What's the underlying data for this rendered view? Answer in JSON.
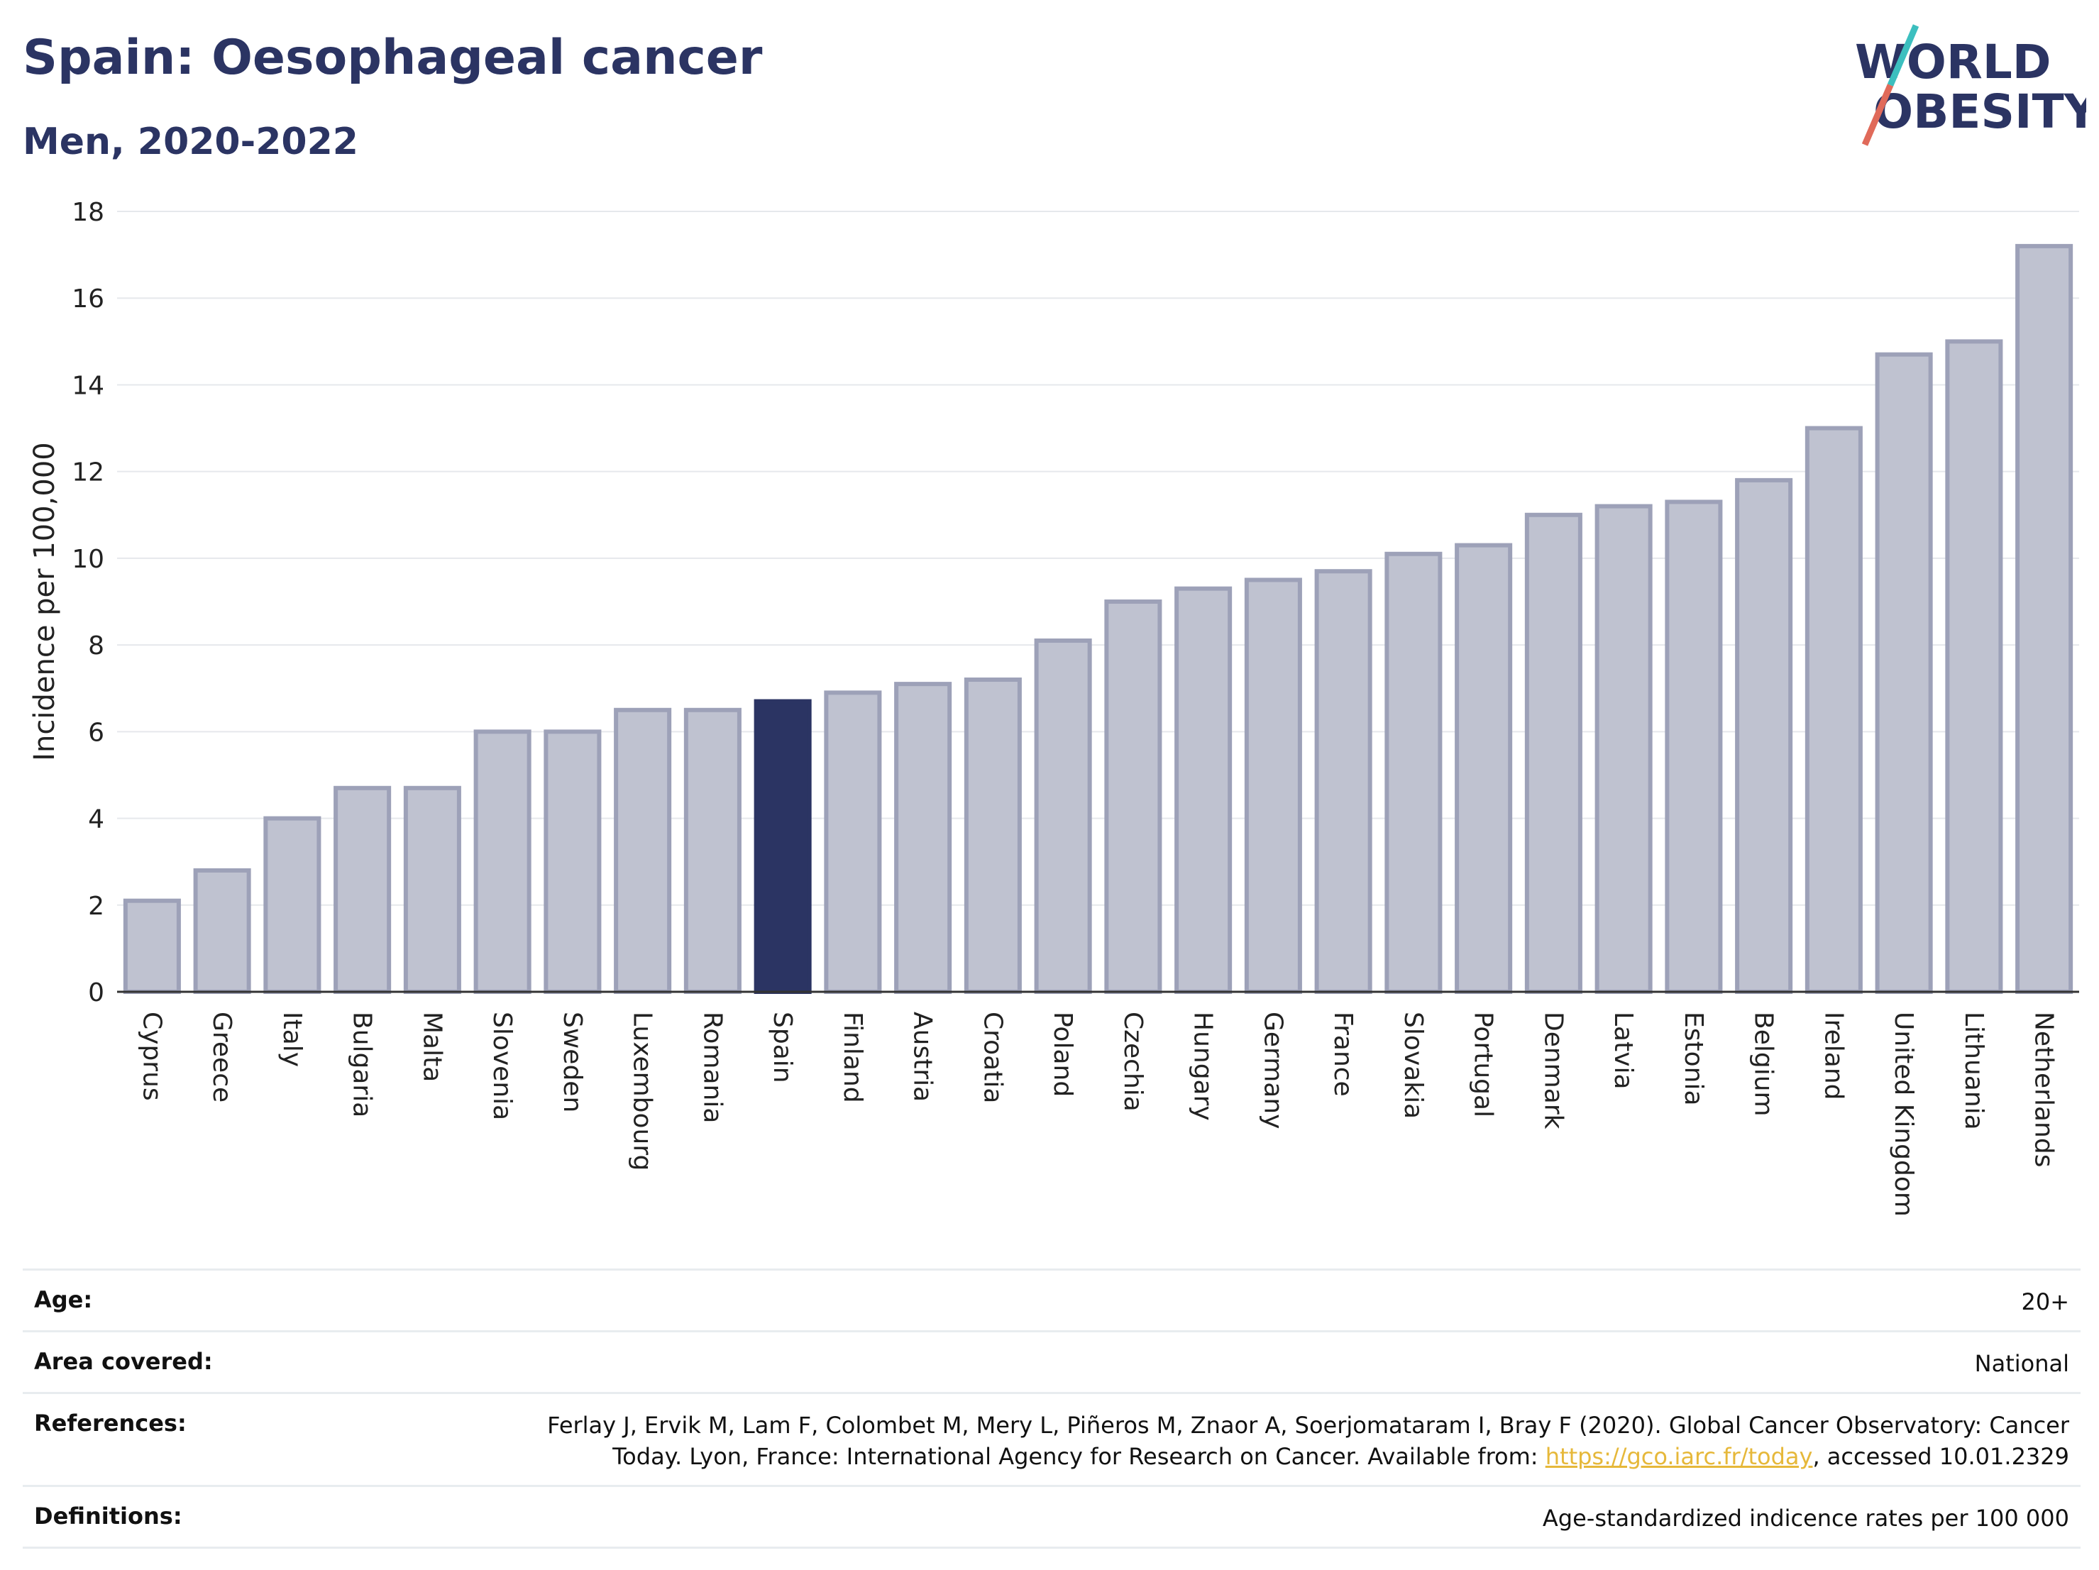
{
  "header": {
    "title": "Spain: Oesophageal cancer",
    "subtitle": "Men, 2020-2022"
  },
  "logo": {
    "line1": "WORLD",
    "line2": "OBESITY",
    "accent_colors": [
      "#3cbfbf",
      "#e06a5a"
    ]
  },
  "chart_data": {
    "type": "bar",
    "ylabel": "Incidence per 100,000",
    "ylim": [
      0,
      18
    ],
    "yticks": [
      0,
      2,
      4,
      6,
      8,
      10,
      12,
      14,
      16,
      18
    ],
    "grid": true,
    "highlight": "Spain",
    "colors": {
      "bar": "#bfc2d0",
      "bar_border": "#9da1b8",
      "highlight": "#2b3463"
    },
    "categories": [
      "Cyprus",
      "Greece",
      "Italy",
      "Bulgaria",
      "Malta",
      "Slovenia",
      "Sweden",
      "Luxembourg",
      "Romania",
      "Spain",
      "Finland",
      "Austria",
      "Croatia",
      "Poland",
      "Czechia",
      "Hungary",
      "Germany",
      "France",
      "Slovakia",
      "Portugal",
      "Denmark",
      "Latvia",
      "Estonia",
      "Belgium",
      "Ireland",
      "United Kingdom",
      "Lithuania",
      "Netherlands"
    ],
    "values": [
      2.1,
      2.8,
      4.0,
      4.7,
      4.7,
      6.0,
      6.0,
      6.5,
      6.5,
      6.7,
      6.9,
      7.1,
      7.2,
      8.1,
      9.0,
      9.3,
      9.5,
      9.7,
      10.1,
      10.3,
      11.0,
      11.2,
      11.3,
      11.8,
      13.0,
      14.7,
      15.0,
      17.2
    ]
  },
  "info": {
    "age_label": "Age:",
    "age_value": "20+",
    "area_label": "Area covered:",
    "area_value": "National",
    "references_label": "References:",
    "references_text_1": "Ferlay J, Ervik M, Lam F, Colombet M, Mery L, Piñeros M, Znaor A, Soerjomataram I, Bray F (2020). Global Cancer Observatory: Cancer Today. Lyon, France: International Agency for Research on Cancer. Available from: ",
    "references_link": "https://gco.iarc.fr/today",
    "references_text_2": ", accessed 10.01.2329",
    "definitions_label": "Definitions:",
    "definitions_value": "Age-standardized indicence rates per 100 000"
  }
}
